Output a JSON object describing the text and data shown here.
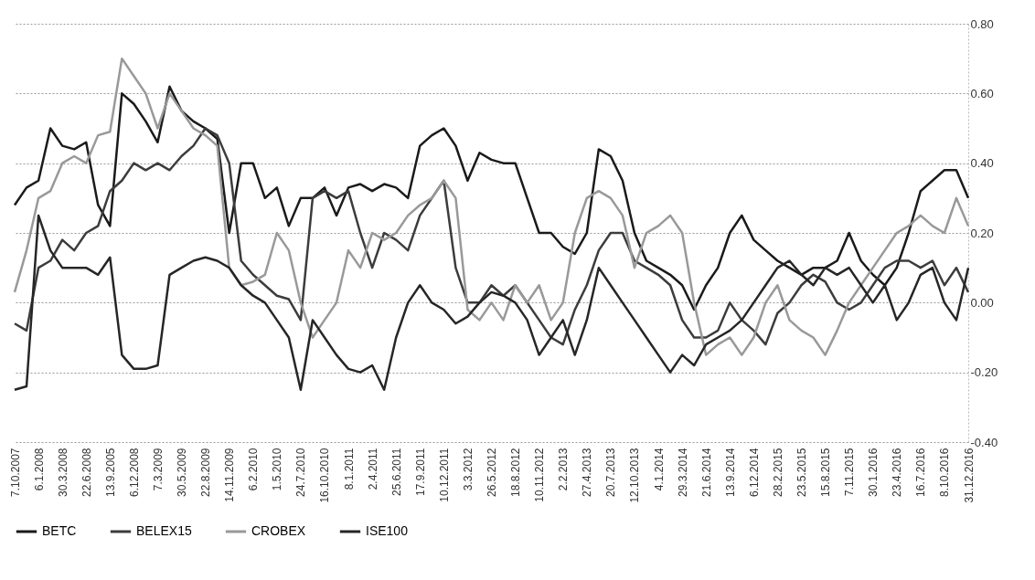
{
  "chart_data": {
    "type": "line",
    "categories": [
      "7.10.2007",
      null,
      "6.1.2008",
      null,
      "30.3.2008",
      null,
      "22.6.2008",
      null,
      "13.9.2005",
      null,
      "6.12.2008",
      null,
      "7.3.2009",
      null,
      "30.5.2009",
      null,
      "22.8.2009",
      null,
      "14.11.2009",
      null,
      "6.2.2010",
      null,
      "1.5.2010",
      null,
      "24.7.2010",
      null,
      "16.10.2010",
      null,
      "8.1.2011",
      null,
      "2.4.2011",
      null,
      "25.6.2011",
      null,
      "17.9.2011",
      null,
      "10.12.2011",
      null,
      "3.3.2012",
      null,
      "26.5.2012",
      null,
      "18.8.2012",
      null,
      "10.11.2012",
      null,
      "2.2.2013",
      null,
      "27.4.2013",
      null,
      "20.7.2013",
      null,
      "12.10.2013",
      null,
      "4.1.2014",
      null,
      "29.3.2014",
      null,
      "21.6.2014",
      null,
      "13.9.2014",
      null,
      "6.12.2014",
      null,
      "28.2.2015",
      null,
      "23.5.2015",
      null,
      "15.8.2015",
      null,
      "7.11.2015",
      null,
      "30.1.2016",
      null,
      "23.4.2016",
      null,
      "16.7.2016",
      null,
      "8.10.2016",
      null,
      "31.12.2016"
    ],
    "series": [
      {
        "name": "BETC",
        "color": "#1a1a1a",
        "values": [
          0.28,
          0.33,
          0.35,
          0.5,
          0.45,
          0.44,
          0.46,
          0.28,
          0.22,
          0.6,
          0.57,
          0.52,
          0.46,
          0.62,
          0.55,
          0.52,
          0.5,
          0.47,
          0.2,
          0.4,
          0.4,
          0.3,
          0.33,
          0.22,
          0.3,
          0.3,
          0.33,
          0.25,
          0.33,
          0.34,
          0.32,
          0.34,
          0.33,
          0.3,
          0.45,
          0.48,
          0.5,
          0.45,
          0.35,
          0.43,
          0.41,
          0.4,
          0.4,
          0.3,
          0.2,
          0.2,
          0.16,
          0.14,
          0.2,
          0.44,
          0.42,
          0.35,
          0.2,
          0.12,
          0.1,
          0.08,
          0.05,
          -0.02,
          0.05,
          0.1,
          0.2,
          0.25,
          0.18,
          0.15,
          0.12,
          0.1,
          0.08,
          0.1,
          0.1,
          0.12,
          0.2,
          0.12,
          0.08,
          0.05,
          0.1,
          0.2,
          0.32,
          0.35,
          0.38,
          0.38,
          0.3
        ]
      },
      {
        "name": "BELEX15",
        "color": "#3c3c3c",
        "values": [
          -0.06,
          -0.08,
          0.1,
          0.12,
          0.18,
          0.15,
          0.2,
          0.22,
          0.32,
          0.35,
          0.4,
          0.38,
          0.4,
          0.38,
          0.42,
          0.45,
          0.5,
          0.48,
          0.4,
          0.12,
          0.08,
          0.05,
          0.02,
          0.01,
          -0.05,
          0.3,
          0.32,
          0.3,
          0.32,
          0.2,
          0.1,
          0.2,
          0.18,
          0.15,
          0.25,
          0.3,
          0.35,
          0.1,
          0.0,
          0.0,
          0.05,
          0.02,
          0.05,
          0.0,
          -0.05,
          -0.1,
          -0.12,
          -0.02,
          0.05,
          0.15,
          0.2,
          0.2,
          0.12,
          0.1,
          0.08,
          0.05,
          -0.05,
          -0.1,
          -0.1,
          -0.08,
          0.0,
          -0.05,
          -0.08,
          -0.12,
          -0.03,
          0.0,
          0.05,
          0.08,
          0.06,
          0.0,
          -0.02,
          0.0,
          0.05,
          0.1,
          0.12,
          0.12,
          0.1,
          0.12,
          0.05,
          0.1,
          0.03
        ]
      },
      {
        "name": "CROBEX",
        "color": "#999999",
        "values": [
          0.03,
          0.15,
          0.3,
          0.32,
          0.4,
          0.42,
          0.4,
          0.48,
          0.49,
          0.7,
          0.65,
          0.6,
          0.5,
          0.6,
          0.55,
          0.5,
          0.48,
          0.45,
          0.1,
          0.05,
          0.06,
          0.08,
          0.2,
          0.15,
          0.0,
          -0.1,
          -0.05,
          0.0,
          0.15,
          0.1,
          0.2,
          0.18,
          0.2,
          0.25,
          0.28,
          0.3,
          0.35,
          0.3,
          -0.02,
          -0.05,
          0.0,
          -0.05,
          0.05,
          0.0,
          0.05,
          -0.05,
          0.0,
          0.2,
          0.3,
          0.32,
          0.3,
          0.25,
          0.1,
          0.2,
          0.22,
          0.25,
          0.2,
          0.0,
          -0.15,
          -0.12,
          -0.1,
          -0.15,
          -0.1,
          0.0,
          0.05,
          -0.05,
          -0.08,
          -0.1,
          -0.15,
          -0.08,
          0.0,
          0.05,
          0.1,
          0.15,
          0.2,
          0.22,
          0.25,
          0.22,
          0.2,
          0.3,
          0.22
        ]
      },
      {
        "name": "ISE100",
        "color": "#262626",
        "values": [
          -0.25,
          -0.24,
          0.25,
          0.15,
          0.1,
          0.1,
          0.1,
          0.08,
          0.13,
          -0.15,
          -0.19,
          -0.19,
          -0.18,
          0.08,
          0.1,
          0.12,
          0.13,
          0.12,
          0.1,
          0.05,
          0.02,
          0.0,
          -0.05,
          -0.1,
          -0.25,
          -0.05,
          -0.1,
          -0.15,
          -0.19,
          -0.2,
          -0.18,
          -0.25,
          -0.1,
          0.0,
          0.05,
          0.0,
          -0.02,
          -0.06,
          -0.04,
          0.0,
          0.03,
          0.02,
          0.0,
          -0.05,
          -0.15,
          -0.1,
          -0.05,
          -0.15,
          -0.05,
          0.1,
          0.05,
          0.0,
          -0.05,
          -0.1,
          -0.15,
          -0.2,
          -0.15,
          -0.18,
          -0.12,
          -0.1,
          -0.08,
          -0.05,
          0.0,
          0.05,
          0.1,
          0.12,
          0.08,
          0.05,
          0.1,
          0.08,
          0.1,
          0.05,
          0.0,
          0.05,
          -0.05,
          0.0,
          0.08,
          0.1,
          0.0,
          -0.05,
          0.1
        ]
      }
    ],
    "ylim": [
      -0.4,
      0.8
    ],
    "yticks": [
      {
        "value": -0.4,
        "label": "-0.40"
      },
      {
        "value": -0.2,
        "label": "-0.20"
      },
      {
        "value": 0,
        "label": "0.00"
      },
      {
        "value": 0.2,
        "label": "0.20"
      },
      {
        "value": 0.4,
        "label": "0.40"
      },
      {
        "value": 0.6,
        "label": "0.60"
      },
      {
        "value": 0.8,
        "label": "0.80"
      }
    ],
    "grid": "y",
    "legend": "bottom",
    "marker": "none",
    "line_style": "solid"
  }
}
